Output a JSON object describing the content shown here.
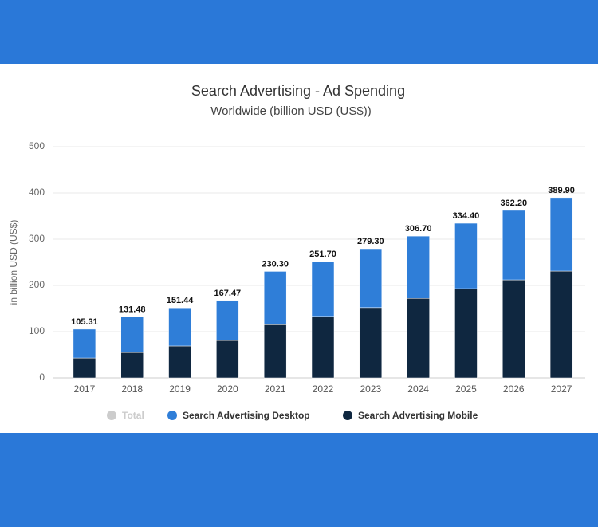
{
  "chart_data": {
    "type": "stacked-bar",
    "title": "Search Advertising - Ad Spending",
    "subtitle": "Worldwide (billion USD (US$))",
    "y_label": "in billion USD (US$)",
    "categories": [
      "2017",
      "2018",
      "2019",
      "2020",
      "2021",
      "2022",
      "2023",
      "2024",
      "2025",
      "2026",
      "2027"
    ],
    "series": [
      {
        "name": "Total",
        "color": "#cccccc",
        "visible": false,
        "values": [
          105.31,
          131.48,
          151.44,
          167.47,
          230.3,
          251.7,
          279.3,
          306.7,
          334.4,
          362.2,
          389.9
        ],
        "value_labels": [
          "105.31",
          "131.48",
          "151.44",
          "167.47",
          "230.30",
          "251.70",
          "279.30",
          "306.70",
          "334.40",
          "362.20",
          "389.90"
        ]
      },
      {
        "name": "Search Advertising Desktop",
        "color": "#2f7ed8",
        "visible": true,
        "values": [
          62.31,
          76.48,
          82.44,
          86.47,
          115.3,
          118.7,
          127.3,
          134.7,
          141.4,
          150.2,
          158.9
        ]
      },
      {
        "name": "Search Advertising Mobile",
        "color": "#0f2740",
        "visible": true,
        "values": [
          43,
          55,
          69,
          81,
          115,
          133,
          152,
          172,
          193,
          212,
          231
        ]
      }
    ],
    "ylim": [
      0,
      500
    ],
    "yticks": [
      0,
      100,
      200,
      300,
      400,
      500
    ],
    "grid": true
  }
}
